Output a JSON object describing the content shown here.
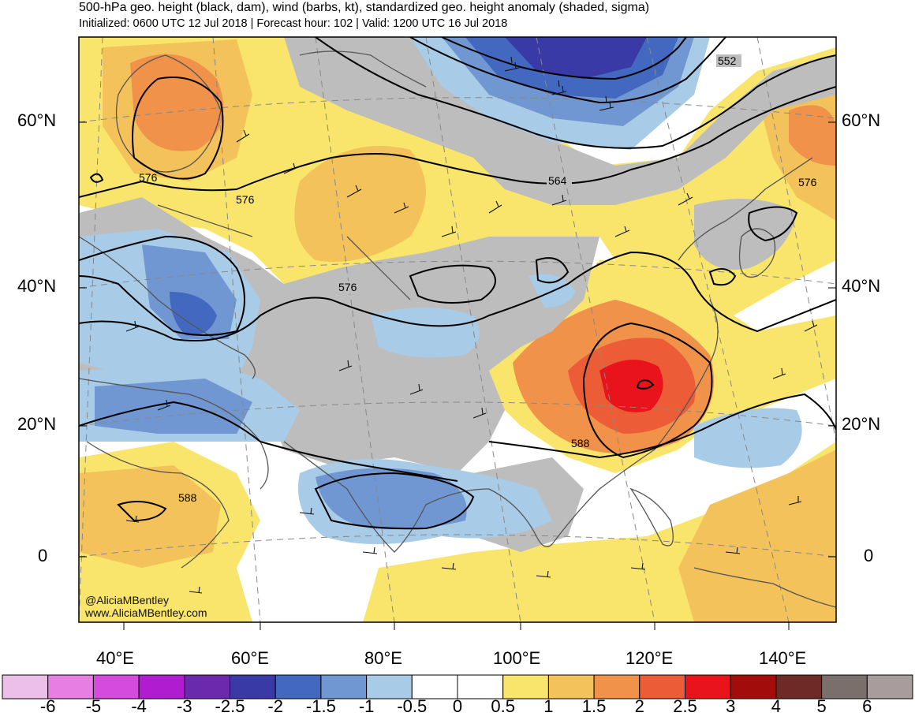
{
  "header": {
    "title": "500-hPa geo. height (black, dam), wind (barbs, kt), standardized geo. height anomaly (shaded, sigma)",
    "subtitle": "Initialized: 0600 UTC 12 Jul 2018 | Forecast hour: 102 | Valid: 1200 UTC 16 Jul 2018"
  },
  "map": {
    "lat_labels": [
      "60°N",
      "40°N",
      "20°N",
      "0"
    ],
    "lon_labels": [
      "40°E",
      "60°E",
      "80°E",
      "100°E",
      "120°E",
      "140°E"
    ],
    "contour_labels": [
      "552",
      "564",
      "576",
      "576",
      "576",
      "576",
      "588",
      "588"
    ],
    "credit": [
      "@AliciaMBentley",
      "www.AliciaMBentley.com"
    ]
  },
  "colorbar": {
    "labels": [
      "-6",
      "-5",
      "-4",
      "-3",
      "-2.5",
      "-2",
      "-1.5",
      "-1",
      "-0.5",
      "0",
      "0.5",
      "1",
      "1.5",
      "2",
      "2.5",
      "3",
      "4",
      "5",
      "6"
    ],
    "colors": [
      "#ecbfe9",
      "#e67ee3",
      "#d54bdb",
      "#b01cd0",
      "#6b2aad",
      "#3a3aa6",
      "#4268c0",
      "#7097d1",
      "#a8cbe7",
      "#ffffff",
      "#ffffff",
      "#f9e56b",
      "#f3c25a",
      "#f0924a",
      "#ec5c37",
      "#e8131b",
      "#a40b0b",
      "#6e2a26",
      "#7b6f6c",
      "#a89c9c"
    ]
  }
}
